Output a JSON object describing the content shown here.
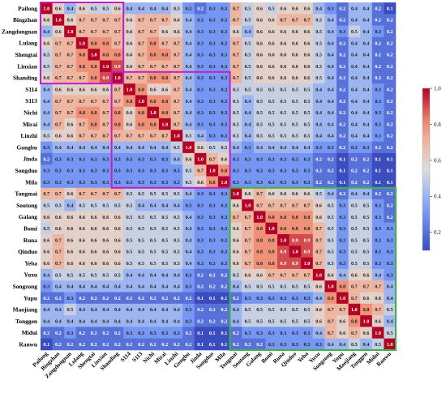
{
  "chart_data": {
    "type": "heatmap",
    "labels": [
      "Pailong",
      "Bingzhan",
      "Zangdongnan",
      "Lulang",
      "Shengtai",
      "Linxian",
      "Shanding",
      "S114",
      "S113",
      "Nichi",
      "Mirai",
      "Linzhi",
      "Gongbu",
      "Jinda",
      "Songduo",
      "Mila",
      "Tongmai",
      "Soutong",
      "Galang",
      "Bomi",
      "Runa",
      "Qinduo",
      "Yeba",
      "Yuxu",
      "Songzong",
      "Yupu",
      "Maojiang",
      "Tonggen",
      "Midui",
      "Ranwu"
    ],
    "matrix": [
      [
        1.0,
        0.6,
        0.4,
        0.6,
        0.5,
        0.5,
        0.6,
        0.4,
        0.4,
        0.4,
        0.4,
        0.5,
        0.3,
        0.2,
        0.3,
        0.3,
        0.7,
        0.5,
        0.6,
        0.5,
        0.6,
        0.6,
        0.6,
        0.4,
        0.3,
        0.2,
        0.4,
        0.4,
        0.2,
        0.1
      ],
      [
        0.6,
        1.0,
        0.6,
        0.7,
        0.7,
        0.7,
        0.7,
        0.6,
        0.7,
        0.7,
        0.7,
        0.6,
        0.4,
        0.3,
        0.3,
        0.3,
        0.7,
        0.5,
        0.6,
        0.6,
        0.7,
        0.7,
        0.7,
        0.5,
        0.4,
        0.2,
        0.4,
        0.4,
        0.2,
        0.2
      ],
      [
        0.4,
        0.6,
        1.0,
        0.7,
        0.7,
        0.7,
        0.7,
        0.6,
        0.7,
        0.7,
        0.6,
        0.6,
        0.4,
        0.3,
        0.3,
        0.3,
        0.6,
        0.4,
        0.6,
        0.6,
        0.6,
        0.6,
        0.6,
        0.5,
        0.4,
        0.3,
        0.5,
        0.4,
        0.3,
        0.2
      ],
      [
        0.6,
        0.7,
        0.7,
        1.0,
        0.8,
        0.8,
        0.7,
        0.6,
        0.7,
        0.8,
        0.7,
        0.7,
        0.4,
        0.3,
        0.3,
        0.3,
        0.7,
        0.5,
        0.6,
        0.6,
        0.6,
        0.6,
        0.6,
        0.5,
        0.4,
        0.2,
        0.4,
        0.4,
        0.2,
        0.2
      ],
      [
        0.5,
        0.7,
        0.7,
        0.8,
        1.0,
        0.8,
        0.8,
        0.6,
        0.7,
        0.8,
        0.8,
        0.7,
        0.4,
        0.3,
        0.3,
        0.3,
        0.7,
        0.5,
        0.6,
        0.6,
        0.6,
        0.6,
        0.6,
        0.5,
        0.4,
        0.2,
        0.4,
        0.4,
        0.2,
        0.2
      ],
      [
        0.5,
        0.7,
        0.7,
        0.8,
        0.8,
        1.0,
        0.9,
        0.6,
        0.7,
        0.7,
        0.7,
        0.7,
        0.4,
        0.3,
        0.3,
        0.3,
        0.7,
        0.5,
        0.6,
        0.6,
        0.6,
        0.6,
        0.6,
        0.5,
        0.4,
        0.2,
        0.4,
        0.4,
        0.2,
        0.2
      ],
      [
        0.6,
        0.7,
        0.7,
        0.7,
        0.8,
        0.9,
        1.0,
        0.7,
        0.7,
        0.8,
        0.8,
        0.7,
        0.4,
        0.3,
        0.3,
        0.3,
        0.7,
        0.5,
        0.6,
        0.6,
        0.6,
        0.6,
        0.6,
        0.5,
        0.4,
        0.2,
        0.4,
        0.4,
        0.2,
        0.2
      ],
      [
        0.4,
        0.6,
        0.6,
        0.6,
        0.6,
        0.6,
        0.7,
        1.0,
        0.8,
        0.6,
        0.6,
        0.7,
        0.4,
        0.3,
        0.3,
        0.3,
        0.5,
        0.5,
        0.5,
        0.5,
        0.5,
        0.5,
        0.5,
        0.4,
        0.4,
        0.2,
        0.4,
        0.4,
        0.3,
        0.2
      ],
      [
        0.4,
        0.7,
        0.7,
        0.7,
        0.7,
        0.7,
        0.7,
        0.8,
        1.0,
        0.8,
        0.8,
        0.7,
        0.4,
        0.3,
        0.3,
        0.3,
        0.5,
        0.4,
        0.5,
        0.5,
        0.5,
        0.5,
        0.5,
        0.4,
        0.4,
        0.2,
        0.4,
        0.4,
        0.3,
        0.2
      ],
      [
        0.4,
        0.7,
        0.7,
        0.8,
        0.8,
        0.7,
        0.8,
        0.6,
        0.8,
        1.0,
        0.8,
        0.7,
        0.4,
        0.3,
        0.3,
        0.3,
        0.5,
        0.4,
        0.5,
        0.5,
        0.5,
        0.5,
        0.5,
        0.4,
        0.4,
        0.2,
        0.4,
        0.4,
        0.3,
        0.2
      ],
      [
        0.4,
        0.7,
        0.6,
        0.7,
        0.8,
        0.7,
        0.8,
        0.6,
        0.8,
        0.8,
        1.0,
        0.7,
        0.4,
        0.3,
        0.3,
        0.3,
        0.5,
        0.4,
        0.5,
        0.5,
        0.5,
        0.5,
        0.5,
        0.4,
        0.4,
        0.2,
        0.4,
        0.4,
        0.3,
        0.2
      ],
      [
        0.5,
        0.6,
        0.6,
        0.7,
        0.7,
        0.7,
        0.7,
        0.7,
        0.7,
        0.7,
        0.7,
        1.0,
        0.5,
        0.4,
        0.3,
        0.3,
        0.5,
        0.4,
        0.5,
        0.5,
        0.5,
        0.5,
        0.5,
        0.4,
        0.4,
        0.2,
        0.4,
        0.4,
        0.3,
        0.2
      ],
      [
        0.3,
        0.4,
        0.4,
        0.4,
        0.4,
        0.4,
        0.4,
        0.4,
        0.4,
        0.4,
        0.4,
        0.5,
        1.0,
        0.6,
        0.5,
        0.5,
        0.4,
        0.3,
        0.4,
        0.4,
        0.4,
        0.4,
        0.4,
        0.3,
        0.3,
        0.2,
        0.3,
        0.3,
        0.2,
        0.2
      ],
      [
        0.2,
        0.3,
        0.3,
        0.3,
        0.3,
        0.3,
        0.3,
        0.3,
        0.3,
        0.3,
        0.3,
        0.4,
        0.6,
        1.0,
        0.7,
        0.6,
        0.3,
        0.3,
        0.3,
        0.3,
        0.3,
        0.3,
        0.3,
        0.2,
        0.2,
        0.1,
        0.2,
        0.2,
        0.1,
        0.1
      ],
      [
        0.3,
        0.3,
        0.3,
        0.3,
        0.3,
        0.3,
        0.3,
        0.3,
        0.3,
        0.3,
        0.3,
        0.3,
        0.5,
        0.7,
        1.0,
        0.8,
        0.3,
        0.3,
        0.3,
        0.3,
        0.3,
        0.3,
        0.3,
        0.2,
        0.2,
        0.1,
        0.2,
        0.2,
        0.1,
        0.1
      ],
      [
        0.3,
        0.3,
        0.3,
        0.3,
        0.3,
        0.3,
        0.3,
        0.3,
        0.3,
        0.3,
        0.3,
        0.3,
        0.5,
        0.6,
        0.8,
        1.0,
        0.3,
        0.3,
        0.3,
        0.3,
        0.3,
        0.3,
        0.3,
        0.2,
        0.2,
        0.1,
        0.2,
        0.2,
        0.1,
        0.1
      ],
      [
        0.7,
        0.7,
        0.6,
        0.7,
        0.7,
        0.7,
        0.7,
        0.5,
        0.5,
        0.5,
        0.5,
        0.5,
        0.4,
        0.3,
        0.3,
        0.3,
        1.0,
        0.6,
        0.7,
        0.6,
        0.6,
        0.6,
        0.6,
        0.5,
        0.4,
        0.2,
        0.4,
        0.4,
        0.2,
        0.2
      ],
      [
        0.5,
        0.5,
        0.4,
        0.5,
        0.5,
        0.5,
        0.5,
        0.5,
        0.4,
        0.4,
        0.4,
        0.4,
        0.3,
        0.3,
        0.3,
        0.3,
        0.6,
        1.0,
        0.7,
        0.7,
        0.7,
        0.7,
        0.7,
        0.6,
        0.5,
        0.3,
        0.5,
        0.5,
        0.3,
        0.2
      ],
      [
        0.6,
        0.6,
        0.6,
        0.6,
        0.6,
        0.6,
        0.6,
        0.5,
        0.5,
        0.5,
        0.5,
        0.5,
        0.4,
        0.3,
        0.3,
        0.3,
        0.7,
        0.7,
        1.0,
        0.8,
        0.8,
        0.8,
        0.8,
        0.6,
        0.5,
        0.3,
        0.5,
        0.5,
        0.3,
        0.2
      ],
      [
        0.5,
        0.6,
        0.6,
        0.6,
        0.6,
        0.6,
        0.6,
        0.5,
        0.5,
        0.5,
        0.5,
        0.5,
        0.4,
        0.3,
        0.3,
        0.3,
        0.6,
        0.7,
        0.8,
        1.0,
        0.8,
        0.8,
        0.8,
        0.7,
        0.5,
        0.3,
        0.5,
        0.5,
        0.3,
        0.3
      ],
      [
        0.6,
        0.7,
        0.6,
        0.6,
        0.6,
        0.6,
        0.6,
        0.5,
        0.5,
        0.5,
        0.5,
        0.5,
        0.4,
        0.3,
        0.3,
        0.3,
        0.6,
        0.7,
        0.8,
        0.8,
        1.0,
        0.9,
        0.9,
        0.7,
        0.5,
        0.3,
        0.5,
        0.5,
        0.3,
        0.3
      ],
      [
        0.6,
        0.7,
        0.6,
        0.6,
        0.6,
        0.6,
        0.6,
        0.5,
        0.5,
        0.5,
        0.5,
        0.5,
        0.4,
        0.3,
        0.3,
        0.3,
        0.6,
        0.7,
        0.8,
        0.8,
        0.9,
        1.0,
        0.9,
        0.7,
        0.5,
        0.3,
        0.5,
        0.5,
        0.3,
        0.3
      ],
      [
        0.6,
        0.7,
        0.6,
        0.6,
        0.6,
        0.6,
        0.6,
        0.5,
        0.5,
        0.5,
        0.5,
        0.5,
        0.4,
        0.3,
        0.3,
        0.3,
        0.6,
        0.7,
        0.8,
        0.8,
        0.9,
        0.9,
        1.0,
        0.7,
        0.5,
        0.3,
        0.5,
        0.5,
        0.3,
        0.3
      ],
      [
        0.4,
        0.5,
        0.5,
        0.5,
        0.5,
        0.5,
        0.5,
        0.4,
        0.4,
        0.4,
        0.4,
        0.4,
        0.3,
        0.2,
        0.2,
        0.2,
        0.5,
        0.6,
        0.6,
        0.7,
        0.7,
        0.7,
        0.7,
        1.0,
        0.6,
        0.4,
        0.6,
        0.6,
        0.4,
        0.3
      ],
      [
        0.3,
        0.4,
        0.4,
        0.4,
        0.4,
        0.4,
        0.4,
        0.4,
        0.4,
        0.4,
        0.4,
        0.4,
        0.3,
        0.2,
        0.2,
        0.2,
        0.4,
        0.5,
        0.5,
        0.5,
        0.5,
        0.5,
        0.5,
        0.6,
        1.0,
        0.8,
        0.7,
        0.7,
        0.7,
        0.4
      ],
      [
        0.2,
        0.2,
        0.3,
        0.2,
        0.2,
        0.2,
        0.2,
        0.2,
        0.2,
        0.2,
        0.2,
        0.2,
        0.2,
        0.1,
        0.1,
        0.1,
        0.2,
        0.3,
        0.3,
        0.3,
        0.3,
        0.3,
        0.3,
        0.4,
        0.8,
        1.0,
        0.7,
        0.6,
        0.6,
        0.4
      ],
      [
        0.4,
        0.4,
        0.5,
        0.4,
        0.4,
        0.4,
        0.4,
        0.4,
        0.4,
        0.4,
        0.4,
        0.4,
        0.3,
        0.2,
        0.2,
        0.2,
        0.4,
        0.5,
        0.5,
        0.5,
        0.5,
        0.5,
        0.5,
        0.6,
        0.7,
        0.7,
        1.0,
        0.8,
        0.7,
        0.5
      ],
      [
        0.4,
        0.4,
        0.4,
        0.4,
        0.4,
        0.4,
        0.4,
        0.4,
        0.4,
        0.4,
        0.4,
        0.4,
        0.3,
        0.2,
        0.2,
        0.2,
        0.4,
        0.5,
        0.5,
        0.5,
        0.5,
        0.5,
        0.5,
        0.6,
        0.7,
        0.6,
        0.8,
        1.0,
        0.6,
        0.4
      ],
      [
        0.2,
        0.2,
        0.3,
        0.2,
        0.2,
        0.2,
        0.2,
        0.3,
        0.3,
        0.3,
        0.3,
        0.3,
        0.2,
        0.1,
        0.1,
        0.1,
        0.2,
        0.3,
        0.3,
        0.3,
        0.3,
        0.3,
        0.3,
        0.4,
        0.7,
        0.6,
        0.7,
        0.6,
        1.0,
        0.5
      ],
      [
        0.1,
        0.2,
        0.2,
        0.2,
        0.2,
        0.2,
        0.2,
        0.2,
        0.2,
        0.2,
        0.2,
        0.2,
        0.2,
        0.1,
        0.1,
        0.1,
        0.2,
        0.2,
        0.2,
        0.3,
        0.3,
        0.3,
        0.3,
        0.3,
        0.4,
        0.4,
        0.5,
        0.4,
        0.5,
        1.0
      ]
    ],
    "colorbar": {
      "min": 0.1,
      "max": 1.0,
      "ticks": [
        "0.2",
        "0.4",
        "0.6",
        "0.8",
        "1.0"
      ]
    },
    "colormap": "coolwarm",
    "highlight_blocks": [
      {
        "start": "Pailong",
        "end": "Shanding",
        "color": "#c41fc4"
      },
      {
        "start": "Shanding",
        "end": "Mila",
        "color": "#c41fc4"
      },
      {
        "start": "Tongmai",
        "end": "Ranwu",
        "color": "#3fb24a"
      }
    ]
  }
}
